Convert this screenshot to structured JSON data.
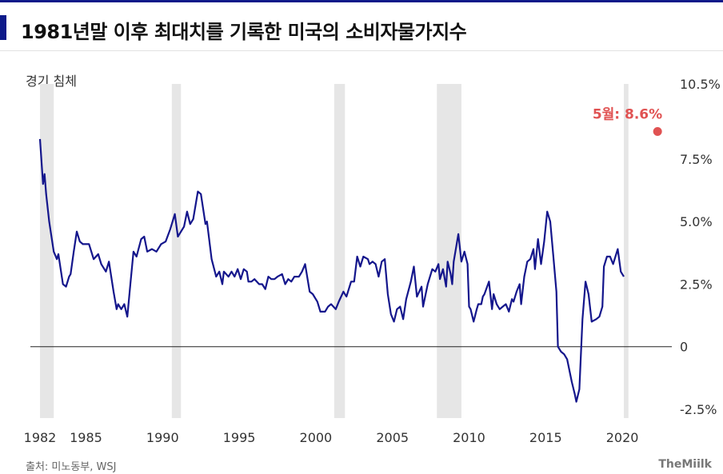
{
  "title": "1981년말 이후 최대치를 기록한 미국의 소비자물가지수",
  "legend_label": "경기 침체",
  "source": "출처: 미노동부, WSJ",
  "brand": "TheMiilk",
  "colors": {
    "line": "#14168c",
    "recession": "#e6e6e6",
    "highlight": "#e05252",
    "accent": "#0d1a8a"
  },
  "chart_data": {
    "type": "line",
    "title": "1981년말 이후 최대치를 기록한 미국의 소비자물가지수",
    "xlabel": "",
    "ylabel": "",
    "xlim": [
      1982,
      2022.5
    ],
    "ylim": [
      -2.5,
      10.5
    ],
    "x_ticks": [
      {
        "value": 1982,
        "label": "1982"
      },
      {
        "value": 1985,
        "label": "1985"
      },
      {
        "value": 1990,
        "label": "1990"
      },
      {
        "value": 1995,
        "label": "1995"
      },
      {
        "value": 2000,
        "label": "2000"
      },
      {
        "value": 2005,
        "label": "2005"
      },
      {
        "value": 2010,
        "label": "2010"
      },
      {
        "value": 2015,
        "label": "2015"
      },
      {
        "value": 2020,
        "label": "2020"
      }
    ],
    "y_ticks": [
      {
        "value": 10.5,
        "label": "10.5%"
      },
      {
        "value": 7.5,
        "label": "7.5%"
      },
      {
        "value": 5.0,
        "label": "5.0%"
      },
      {
        "value": 2.5,
        "label": "2.5%"
      },
      {
        "value": 0,
        "label": "0"
      },
      {
        "value": -2.5,
        "label": "-2.5%"
      }
    ],
    "y_axis_side": "right",
    "recessions": [
      [
        1982.0,
        1982.9
      ],
      [
        1990.6,
        1991.2
      ],
      [
        2001.2,
        2001.9
      ],
      [
        2007.9,
        2009.5
      ],
      [
        2020.1,
        2020.4
      ]
    ],
    "series": [
      {
        "points": [
          [
            1982.0,
            8.3
          ],
          [
            1982.2,
            6.5
          ],
          [
            1982.3,
            6.9
          ],
          [
            1982.4,
            6.1
          ],
          [
            1982.6,
            5.0
          ],
          [
            1982.9,
            3.8
          ],
          [
            1983.1,
            3.5
          ],
          [
            1983.2,
            3.7
          ],
          [
            1983.5,
            2.5
          ],
          [
            1983.7,
            2.4
          ],
          [
            1983.9,
            2.8
          ],
          [
            1984.0,
            2.9
          ],
          [
            1984.2,
            3.8
          ],
          [
            1984.4,
            4.6
          ],
          [
            1984.6,
            4.2
          ],
          [
            1984.8,
            4.1
          ],
          [
            1985.2,
            4.1
          ],
          [
            1985.5,
            3.5
          ],
          [
            1985.8,
            3.7
          ],
          [
            1986.0,
            3.3
          ],
          [
            1986.3,
            3.0
          ],
          [
            1986.5,
            3.4
          ],
          [
            1986.8,
            2.2
          ],
          [
            1987.0,
            1.5
          ],
          [
            1987.1,
            1.7
          ],
          [
            1987.3,
            1.5
          ],
          [
            1987.5,
            1.7
          ],
          [
            1987.7,
            1.2
          ],
          [
            1987.9,
            2.5
          ],
          [
            1988.1,
            3.8
          ],
          [
            1988.3,
            3.6
          ],
          [
            1988.6,
            4.3
          ],
          [
            1988.8,
            4.4
          ],
          [
            1989.0,
            3.8
          ],
          [
            1989.3,
            3.9
          ],
          [
            1989.6,
            3.8
          ],
          [
            1989.9,
            4.1
          ],
          [
            1990.2,
            4.2
          ],
          [
            1990.5,
            4.7
          ],
          [
            1990.8,
            5.3
          ],
          [
            1991.0,
            4.4
          ],
          [
            1991.2,
            4.6
          ],
          [
            1991.4,
            4.8
          ],
          [
            1991.6,
            5.4
          ],
          [
            1991.8,
            4.9
          ],
          [
            1992.0,
            5.1
          ],
          [
            1992.3,
            6.2
          ],
          [
            1992.5,
            6.1
          ],
          [
            1992.8,
            4.9
          ],
          [
            1992.9,
            5.0
          ],
          [
            1993.2,
            3.5
          ],
          [
            1993.5,
            2.8
          ],
          [
            1993.7,
            3.0
          ],
          [
            1993.9,
            2.5
          ],
          [
            1994.0,
            3.0
          ],
          [
            1994.3,
            2.8
          ],
          [
            1994.5,
            3.0
          ],
          [
            1994.7,
            2.8
          ],
          [
            1994.9,
            3.1
          ],
          [
            1995.1,
            2.7
          ],
          [
            1995.3,
            3.1
          ],
          [
            1995.5,
            3.0
          ],
          [
            1995.6,
            2.6
          ],
          [
            1995.8,
            2.6
          ],
          [
            1996.0,
            2.7
          ],
          [
            1996.3,
            2.5
          ],
          [
            1996.5,
            2.5
          ],
          [
            1996.7,
            2.3
          ],
          [
            1996.9,
            2.8
          ],
          [
            1997.1,
            2.7
          ],
          [
            1997.3,
            2.7
          ],
          [
            1997.5,
            2.8
          ],
          [
            1997.8,
            2.9
          ],
          [
            1998.0,
            2.5
          ],
          [
            1998.2,
            2.7
          ],
          [
            1998.4,
            2.6
          ],
          [
            1998.6,
            2.8
          ],
          [
            1998.9,
            2.8
          ],
          [
            1999.1,
            3.0
          ],
          [
            1999.3,
            3.3
          ],
          [
            1999.6,
            2.2
          ],
          [
            1999.8,
            2.1
          ],
          [
            2000.1,
            1.8
          ],
          [
            2000.3,
            1.4
          ],
          [
            2000.6,
            1.4
          ],
          [
            2000.8,
            1.6
          ],
          [
            2001.0,
            1.7
          ],
          [
            2001.3,
            1.5
          ],
          [
            2001.5,
            1.8
          ],
          [
            2001.8,
            2.2
          ],
          [
            2002.0,
            2.0
          ],
          [
            2002.3,
            2.6
          ],
          [
            2002.5,
            2.6
          ],
          [
            2002.7,
            3.6
          ],
          [
            2002.9,
            3.2
          ],
          [
            2003.1,
            3.6
          ],
          [
            2003.4,
            3.5
          ],
          [
            2003.5,
            3.3
          ],
          [
            2003.7,
            3.4
          ],
          [
            2003.9,
            3.3
          ],
          [
            2004.1,
            2.8
          ],
          [
            2004.3,
            3.4
          ],
          [
            2004.5,
            3.5
          ],
          [
            2004.7,
            2.1
          ],
          [
            2004.9,
            1.3
          ],
          [
            2005.1,
            1.0
          ],
          [
            2005.3,
            1.5
          ],
          [
            2005.5,
            1.6
          ],
          [
            2005.7,
            1.1
          ],
          [
            2005.9,
            1.9
          ],
          [
            2006.2,
            2.6
          ],
          [
            2006.4,
            3.2
          ],
          [
            2006.6,
            2.0
          ],
          [
            2006.9,
            2.4
          ],
          [
            2007.0,
            1.6
          ],
          [
            2007.3,
            2.5
          ],
          [
            2007.6,
            3.1
          ],
          [
            2007.8,
            3.0
          ],
          [
            2008.0,
            3.3
          ],
          [
            2008.1,
            2.7
          ],
          [
            2008.3,
            3.1
          ],
          [
            2008.5,
            2.4
          ],
          [
            2008.6,
            3.4
          ],
          [
            2008.8,
            2.9
          ],
          [
            2008.9,
            2.5
          ],
          [
            2009.0,
            3.4
          ],
          [
            2009.3,
            4.5
          ],
          [
            2009.5,
            3.4
          ],
          [
            2009.7,
            3.8
          ],
          [
            2009.9,
            3.3
          ],
          [
            2010.0,
            1.6
          ],
          [
            2010.1,
            1.5
          ],
          [
            2010.3,
            1.0
          ],
          [
            2010.5,
            1.5
          ],
          [
            2010.6,
            1.7
          ],
          [
            2010.8,
            1.7
          ],
          [
            2010.9,
            2.0
          ],
          [
            2011.0,
            2.1
          ],
          [
            2011.3,
            2.6
          ],
          [
            2011.5,
            1.5
          ],
          [
            2011.6,
            2.1
          ],
          [
            2011.8,
            1.7
          ],
          [
            2012.0,
            1.5
          ],
          [
            2012.2,
            1.6
          ],
          [
            2012.4,
            1.7
          ],
          [
            2012.6,
            1.4
          ],
          [
            2012.8,
            1.9
          ],
          [
            2012.9,
            1.8
          ],
          [
            2013.1,
            2.2
          ],
          [
            2013.3,
            2.5
          ],
          [
            2013.4,
            1.7
          ],
          [
            2013.6,
            2.8
          ],
          [
            2013.8,
            3.4
          ],
          [
            2014.0,
            3.5
          ],
          [
            2014.2,
            3.9
          ],
          [
            2014.3,
            3.1
          ],
          [
            2014.5,
            4.3
          ],
          [
            2014.7,
            3.3
          ],
          [
            2014.9,
            4.2
          ],
          [
            2015.1,
            5.4
          ],
          [
            2015.3,
            5.0
          ],
          [
            2015.5,
            3.6
          ],
          [
            2015.7,
            2.2
          ],
          [
            2015.8,
            0.0
          ],
          [
            2016.0,
            -0.2
          ],
          [
            2016.2,
            -0.3
          ],
          [
            2016.4,
            -0.5
          ],
          [
            2016.7,
            -1.4
          ],
          [
            2016.9,
            -1.9
          ],
          [
            2017.0,
            -2.2
          ],
          [
            2017.2,
            -1.7
          ],
          [
            2017.4,
            1.1
          ],
          [
            2017.6,
            2.6
          ],
          [
            2017.8,
            2.1
          ],
          [
            2018.0,
            1.0
          ],
          [
            2018.3,
            1.1
          ],
          [
            2018.5,
            1.2
          ],
          [
            2018.7,
            1.6
          ],
          [
            2018.8,
            3.2
          ],
          [
            2019.0,
            3.6
          ],
          [
            2019.2,
            3.6
          ],
          [
            2019.4,
            3.3
          ],
          [
            2019.7,
            3.9
          ],
          [
            2019.9,
            3.0
          ],
          [
            2020.1,
            2.8
          ]
        ]
      }
    ],
    "annotation": {
      "label": "5월: 8.6%",
      "x": 2022.3,
      "y": 8.6
    }
  }
}
